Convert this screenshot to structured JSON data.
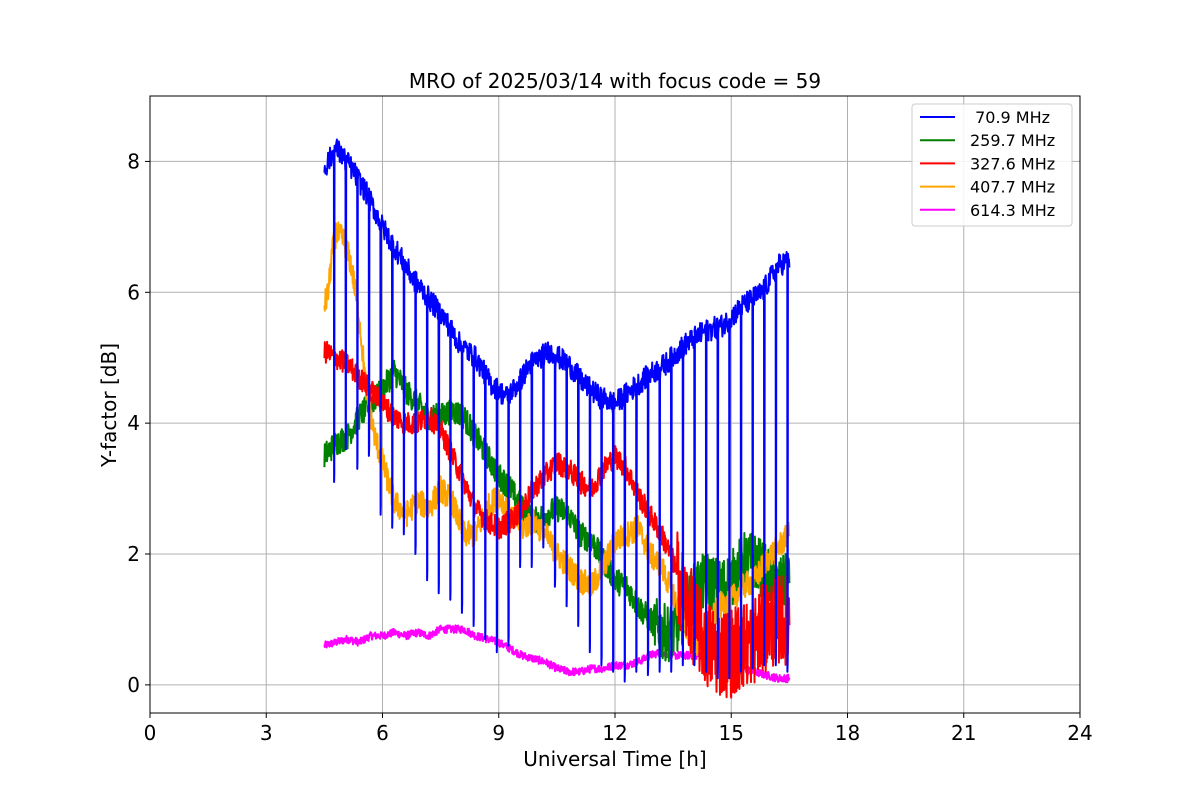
{
  "chart_data": {
    "type": "line",
    "title": "MRO of 2025/03/14 with focus code = 59",
    "xlabel": "Universal Time [h]",
    "ylabel": "Y-factor [dB]",
    "xlim": [
      0,
      24
    ],
    "ylim": [
      -0.43,
      9.0
    ],
    "xticks": [
      0,
      3,
      6,
      9,
      12,
      15,
      18,
      21,
      24
    ],
    "yticks": [
      0,
      2,
      4,
      6,
      8
    ],
    "grid": true,
    "legend_position": "top-right",
    "series": [
      {
        "name": " 70.9 MHz",
        "color": "#0000ff",
        "baseline": [
          [
            4.5,
            7.9
          ],
          [
            4.8,
            8.2
          ],
          [
            5.2,
            7.9
          ],
          [
            5.6,
            7.5
          ],
          [
            6.0,
            7.0
          ],
          [
            6.4,
            6.6
          ],
          [
            6.8,
            6.2
          ],
          [
            7.2,
            5.9
          ],
          [
            7.6,
            5.6
          ],
          [
            8.0,
            5.2
          ],
          [
            8.4,
            5.0
          ],
          [
            8.8,
            4.6
          ],
          [
            9.2,
            4.4
          ],
          [
            9.5,
            4.6
          ],
          [
            9.8,
            4.9
          ],
          [
            10.3,
            5.1
          ],
          [
            10.8,
            4.9
          ],
          [
            11.2,
            4.6
          ],
          [
            11.6,
            4.4
          ],
          [
            12.0,
            4.3
          ],
          [
            12.4,
            4.5
          ],
          [
            12.8,
            4.7
          ],
          [
            13.3,
            4.9
          ],
          [
            13.8,
            5.2
          ],
          [
            14.3,
            5.4
          ],
          [
            14.8,
            5.5
          ],
          [
            15.3,
            5.8
          ],
          [
            15.8,
            6.0
          ],
          [
            16.2,
            6.4
          ],
          [
            16.5,
            6.5
          ]
        ],
        "dips": [
          [
            4.75,
            3.1
          ],
          [
            5.05,
            3.6
          ],
          [
            5.35,
            3.3
          ],
          [
            5.65,
            3.5
          ],
          [
            5.95,
            2.6
          ],
          [
            6.25,
            2.4
          ],
          [
            6.55,
            2.3
          ],
          [
            6.85,
            2.0
          ],
          [
            7.15,
            1.6
          ],
          [
            7.45,
            1.4
          ],
          [
            7.75,
            1.3
          ],
          [
            8.05,
            1.1
          ],
          [
            8.35,
            0.9
          ],
          [
            8.65,
            0.7
          ],
          [
            8.95,
            0.5
          ],
          [
            9.25,
            0.6
          ],
          [
            9.55,
            1.8
          ],
          [
            9.85,
            1.8
          ],
          [
            10.15,
            2.1
          ],
          [
            10.45,
            1.5
          ],
          [
            10.75,
            1.2
          ],
          [
            11.05,
            0.9
          ],
          [
            11.35,
            0.5
          ],
          [
            11.65,
            0.3
          ],
          [
            11.95,
            0.2
          ],
          [
            12.25,
            0.05
          ],
          [
            12.55,
            0.2
          ],
          [
            12.85,
            0.15
          ],
          [
            13.15,
            0.2
          ],
          [
            13.45,
            0.2
          ],
          [
            13.75,
            0.3
          ],
          [
            14.05,
            0.3
          ],
          [
            14.35,
            0.2
          ],
          [
            14.65,
            0.1
          ],
          [
            14.95,
            0.1
          ],
          [
            15.25,
            0.2
          ],
          [
            15.55,
            0.25
          ],
          [
            15.85,
            0.3
          ],
          [
            16.15,
            0.3
          ],
          [
            16.45,
            0.2
          ]
        ]
      },
      {
        "name": "259.7 MHz",
        "color": "#008000",
        "values": [
          [
            4.5,
            3.5
          ],
          [
            4.8,
            3.7
          ],
          [
            5.1,
            3.8
          ],
          [
            5.4,
            4.1
          ],
          [
            5.7,
            4.3
          ],
          [
            6.0,
            4.5
          ],
          [
            6.3,
            4.8
          ],
          [
            6.6,
            4.5
          ],
          [
            6.9,
            4.3
          ],
          [
            7.2,
            4.1
          ],
          [
            7.5,
            4.1
          ],
          [
            7.8,
            4.2
          ],
          [
            8.1,
            4.1
          ],
          [
            8.4,
            3.8
          ],
          [
            8.7,
            3.5
          ],
          [
            9.0,
            3.2
          ],
          [
            9.3,
            3.0
          ],
          [
            9.6,
            2.7
          ],
          [
            9.9,
            2.5
          ],
          [
            10.2,
            2.6
          ],
          [
            10.5,
            2.7
          ],
          [
            10.8,
            2.6
          ],
          [
            11.1,
            2.3
          ],
          [
            11.4,
            2.2
          ],
          [
            11.7,
            1.9
          ],
          [
            12.0,
            1.6
          ],
          [
            12.3,
            1.5
          ],
          [
            12.6,
            1.2
          ],
          [
            12.9,
            1.0
          ],
          [
            13.2,
            0.8
          ],
          [
            13.5,
            0.8
          ],
          [
            13.8,
            1.1
          ],
          [
            14.1,
            1.5
          ],
          [
            14.4,
            1.6
          ],
          [
            14.7,
            1.5
          ],
          [
            15.0,
            1.6
          ],
          [
            15.3,
            1.9
          ],
          [
            15.6,
            1.9
          ],
          [
            15.9,
            1.7
          ],
          [
            16.2,
            1.5
          ],
          [
            16.5,
            1.6
          ]
        ]
      },
      {
        "name": "327.6 MHz",
        "color": "#ff0000",
        "values": [
          [
            4.5,
            5.1
          ],
          [
            4.8,
            5.0
          ],
          [
            5.1,
            4.9
          ],
          [
            5.4,
            4.7
          ],
          [
            5.7,
            4.5
          ],
          [
            6.0,
            4.3
          ],
          [
            6.3,
            4.1
          ],
          [
            6.6,
            4.0
          ],
          [
            6.9,
            4.0
          ],
          [
            7.2,
            4.1
          ],
          [
            7.5,
            3.9
          ],
          [
            7.8,
            3.5
          ],
          [
            8.1,
            3.1
          ],
          [
            8.4,
            2.7
          ],
          [
            8.7,
            2.5
          ],
          [
            9.0,
            2.4
          ],
          [
            9.3,
            2.5
          ],
          [
            9.6,
            2.7
          ],
          [
            9.9,
            3.0
          ],
          [
            10.2,
            3.2
          ],
          [
            10.5,
            3.4
          ],
          [
            10.8,
            3.3
          ],
          [
            11.1,
            3.1
          ],
          [
            11.4,
            3.0
          ],
          [
            11.7,
            3.3
          ],
          [
            12.0,
            3.5
          ],
          [
            12.3,
            3.3
          ],
          [
            12.6,
            2.9
          ],
          [
            12.9,
            2.6
          ],
          [
            13.2,
            2.3
          ],
          [
            13.5,
            1.9
          ],
          [
            13.8,
            1.3
          ],
          [
            14.1,
            0.9
          ],
          [
            14.4,
            0.6
          ],
          [
            14.7,
            0.5
          ],
          [
            15.0,
            0.5
          ],
          [
            15.3,
            0.6
          ],
          [
            15.6,
            0.7
          ],
          [
            15.9,
            0.9
          ],
          [
            16.2,
            1.0
          ],
          [
            16.5,
            1.0
          ]
        ]
      },
      {
        "name": "407.7 MHz",
        "color": "#ffa500",
        "values": [
          [
            4.5,
            5.8
          ],
          [
            4.6,
            6.0
          ],
          [
            4.7,
            6.6
          ],
          [
            4.8,
            6.9
          ],
          [
            5.0,
            6.8
          ],
          [
            5.2,
            6.4
          ],
          [
            5.4,
            5.6
          ],
          [
            5.6,
            4.4
          ],
          [
            5.8,
            3.8
          ],
          [
            6.0,
            3.4
          ],
          [
            6.3,
            2.8
          ],
          [
            6.6,
            2.6
          ],
          [
            6.9,
            2.8
          ],
          [
            7.2,
            2.7
          ],
          [
            7.5,
            3.0
          ],
          [
            7.8,
            2.8
          ],
          [
            8.1,
            2.3
          ],
          [
            8.4,
            2.3
          ],
          [
            8.7,
            2.7
          ],
          [
            9.0,
            2.9
          ],
          [
            9.3,
            2.6
          ],
          [
            9.6,
            2.4
          ],
          [
            9.9,
            2.5
          ],
          [
            10.2,
            2.3
          ],
          [
            10.5,
            2.0
          ],
          [
            10.8,
            1.8
          ],
          [
            11.1,
            1.6
          ],
          [
            11.4,
            1.5
          ],
          [
            11.7,
            1.8
          ],
          [
            12.0,
            2.2
          ],
          [
            12.3,
            2.3
          ],
          [
            12.6,
            2.4
          ],
          [
            12.9,
            2.0
          ],
          [
            13.2,
            1.8
          ],
          [
            13.5,
            1.4
          ],
          [
            13.8,
            0.9
          ],
          [
            14.1,
            0.6
          ],
          [
            14.4,
            0.9
          ],
          [
            14.7,
            1.2
          ],
          [
            15.0,
            1.3
          ],
          [
            15.3,
            1.5
          ],
          [
            15.6,
            1.6
          ],
          [
            15.9,
            1.9
          ],
          [
            16.2,
            2.1
          ],
          [
            16.5,
            2.3
          ]
        ]
      },
      {
        "name": "614.3 MHz",
        "color": "#ff00ff",
        "values": [
          [
            4.5,
            0.6
          ],
          [
            4.8,
            0.65
          ],
          [
            5.1,
            0.7
          ],
          [
            5.4,
            0.65
          ],
          [
            5.7,
            0.75
          ],
          [
            6.0,
            0.75
          ],
          [
            6.3,
            0.8
          ],
          [
            6.6,
            0.75
          ],
          [
            6.9,
            0.8
          ],
          [
            7.2,
            0.75
          ],
          [
            7.5,
            0.85
          ],
          [
            7.8,
            0.85
          ],
          [
            8.1,
            0.85
          ],
          [
            8.4,
            0.75
          ],
          [
            8.7,
            0.7
          ],
          [
            9.0,
            0.65
          ],
          [
            9.3,
            0.55
          ],
          [
            9.6,
            0.45
          ],
          [
            9.9,
            0.4
          ],
          [
            10.2,
            0.35
          ],
          [
            10.5,
            0.25
          ],
          [
            10.8,
            0.2
          ],
          [
            11.1,
            0.2
          ],
          [
            11.4,
            0.25
          ],
          [
            11.7,
            0.25
          ],
          [
            12.0,
            0.3
          ],
          [
            12.3,
            0.3
          ],
          [
            12.6,
            0.35
          ],
          [
            12.9,
            0.45
          ],
          [
            13.2,
            0.5
          ],
          [
            13.5,
            0.45
          ],
          [
            13.8,
            0.45
          ],
          [
            14.1,
            0.45
          ],
          [
            14.4,
            0.45
          ],
          [
            14.7,
            0.45
          ],
          [
            15.0,
            0.35
          ],
          [
            15.3,
            0.25
          ],
          [
            15.6,
            0.2
          ],
          [
            15.9,
            0.15
          ],
          [
            16.2,
            0.1
          ],
          [
            16.5,
            0.1
          ]
        ]
      }
    ]
  }
}
